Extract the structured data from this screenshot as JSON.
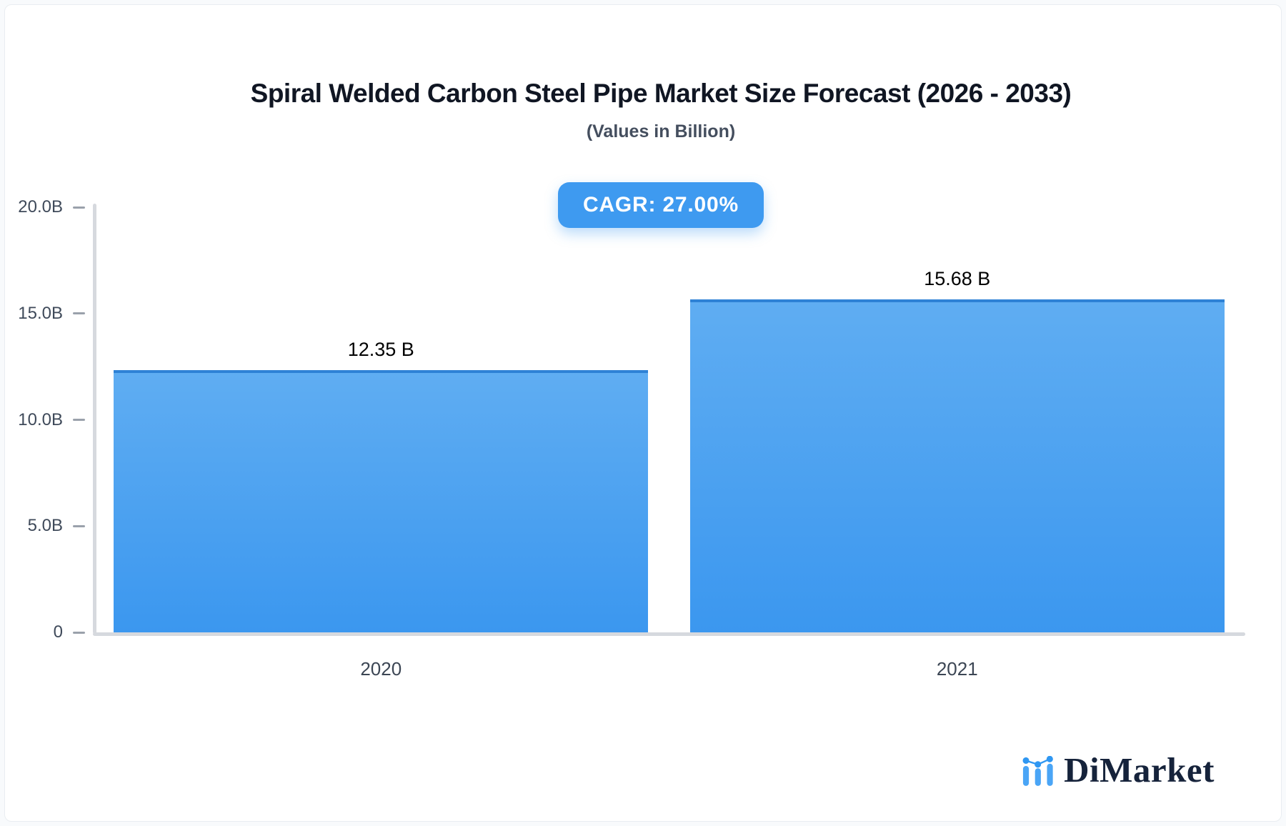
{
  "header": {
    "title": "Spiral Welded Carbon Steel Pipe Market Size Forecast (2026 - 2033)",
    "subtitle": "(Values in Billion)",
    "cagr_label": "CAGR: 27.00%"
  },
  "chart_data": {
    "type": "bar",
    "title": "Spiral Welded Carbon Steel Pipe Market Size Forecast (2026 - 2033)",
    "subtitle": "(Values in Billion)",
    "categories": [
      "2020",
      "2021"
    ],
    "values": [
      12.35,
      15.68
    ],
    "value_labels": [
      "12.35 B",
      "15.68 B"
    ],
    "cagr_percent": 27.0,
    "ylim": [
      0,
      20
    ],
    "yticks": [
      {
        "value": 0,
        "label": "0"
      },
      {
        "value": 5,
        "label": "5.0B"
      },
      {
        "value": 10,
        "label": "10.0B"
      },
      {
        "value": 15,
        "label": "15.0B"
      },
      {
        "value": 20,
        "label": "20.0B"
      }
    ],
    "grid": false,
    "legend": false
  },
  "colors": {
    "badge_bg": "#3e9af0",
    "bar_gradient_top": "#5fadf2",
    "bar_gradient_bottom": "#3b97ef",
    "bar_top_border": "#2e82d6",
    "axis_line": "#d6d9de",
    "tick_dash": "#9aa1ab",
    "brand_text": "#16233b",
    "brand_icon_bar": "#4aa5f6",
    "brand_icon_dot": "#2f97f2"
  },
  "branding": {
    "name": "DiMarket"
  }
}
